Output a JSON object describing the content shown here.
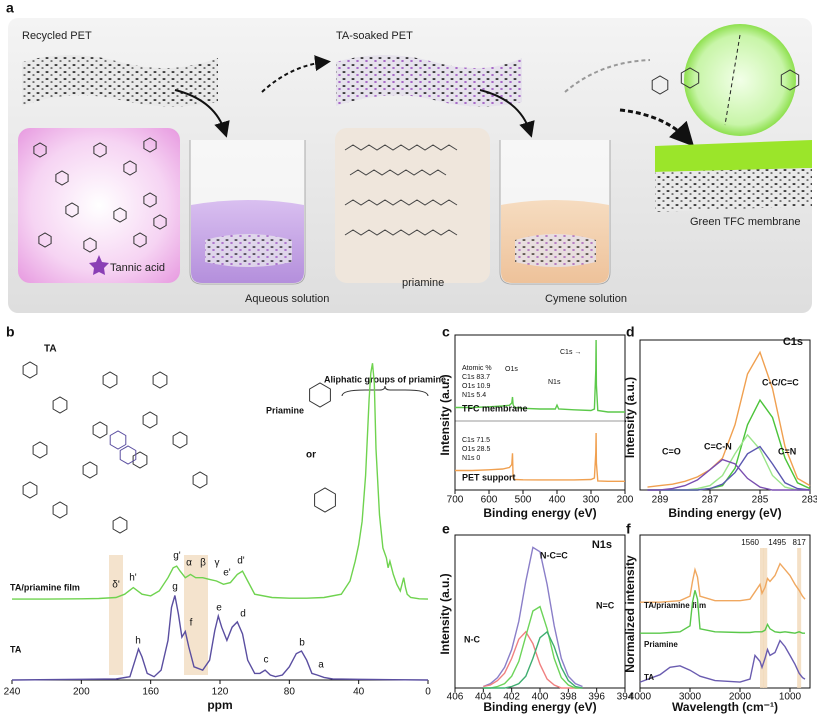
{
  "figure": {
    "panel_a": {
      "label": "a",
      "recycled": "Recycled PET",
      "soaked": "TA-soaked PET",
      "tannic": "Tannic acid",
      "aqueous": "Aqueous solution",
      "priamine": "priamine",
      "cymene": "Cymene solution",
      "membrane": "Green TFC membrane"
    },
    "panel_b_structures": {
      "ta": "TA",
      "priamine": "Priamine",
      "or": "or",
      "aliphatic": "Aliphatic groups of priamine"
    }
  },
  "chart_data": [
    {
      "type": "line",
      "label": "b",
      "xlabel": "ppm",
      "xlim": [
        240,
        0
      ],
      "xticks": [
        240,
        200,
        160,
        120,
        80,
        40,
        0
      ],
      "ylim": [
        0,
        100
      ],
      "frame": false,
      "series": [
        {
          "name": "TA/priamine film",
          "color": "#6fd34f",
          "x": [
            240,
            220,
            200,
            190,
            180,
            175,
            170,
            165,
            160,
            155,
            150,
            147,
            145,
            143,
            140,
            137,
            134,
            130,
            126,
            122,
            118,
            114,
            110,
            107,
            104,
            100,
            90,
            80,
            70,
            60,
            50,
            45,
            42,
            40,
            38,
            36,
            34,
            33,
            32,
            31,
            30,
            28,
            26,
            24,
            23,
            22,
            20,
            18,
            16,
            14,
            13,
            12,
            10,
            5,
            0
          ],
          "values": [
            24.5,
            24.5,
            24.6,
            24.7,
            25,
            26,
            28,
            26,
            25.5,
            27,
            31,
            34,
            34.5,
            33,
            31,
            32,
            31,
            31,
            30.5,
            30,
            29,
            29.5,
            32,
            33,
            30,
            26,
            25,
            24.8,
            24.8,
            25,
            26,
            30,
            36,
            41,
            48,
            62,
            85,
            93,
            96,
            90,
            70,
            50,
            40,
            37,
            34,
            36,
            32,
            29,
            27,
            31,
            28,
            26,
            25,
            24.6,
            24.5
          ],
          "peak_labels": [
            "δ'",
            "h'",
            "g'",
            "α",
            "β",
            "γ",
            "e'",
            "d'"
          ]
        },
        {
          "name": "TA",
          "color": "#5a4ea0",
          "x": [
            240,
            200,
            180,
            172,
            169,
            167,
            165,
            162,
            158,
            154,
            150,
            148,
            146,
            144,
            142,
            140,
            138,
            135,
            130,
            126,
            123,
            121,
            119,
            116,
            113,
            110,
            107,
            104,
            100,
            97,
            94,
            91,
            88,
            84,
            80,
            76,
            73,
            70,
            67,
            64,
            60,
            55,
            40,
            20,
            0
          ],
          "values": [
            0,
            0.2,
            0.3,
            1,
            6,
            9.4,
            7,
            2,
            1,
            3,
            12,
            22,
            25.6,
            20,
            13,
            14.7,
            10,
            4,
            3,
            6,
            15,
            19.4,
            16,
            12,
            16,
            17.6,
            14,
            6,
            2,
            2,
            3,
            1.5,
            1,
            1.5,
            4,
            8,
            8.8,
            6,
            2,
            1.5,
            0.8,
            0.3,
            0.2,
            0.1,
            0
          ],
          "peak_labels": [
            "h",
            "g",
            "f",
            "e",
            "d",
            "c",
            "b",
            "a"
          ]
        }
      ]
    },
    {
      "type": "line",
      "label": "c",
      "xlabel": "Binding energy (eV)",
      "ylabel": "Intensity (a.u.)",
      "xlim": [
        700,
        200
      ],
      "xticks": [
        700,
        600,
        500,
        400,
        300,
        200
      ],
      "ylim": [
        0,
        100
      ],
      "frame": true,
      "annotations": [
        "Atomic %",
        "C1s 83.7",
        "O1s 10.9",
        "N1s 5.4",
        "C1s 71.5",
        "O1s 28.5",
        "N1s 0",
        "O1s",
        "N1s",
        "C1s →"
      ],
      "series": [
        {
          "name": "TFC membrane",
          "color": "#5cc94a",
          "x": [
            700,
            650,
            600,
            560,
            540,
            533,
            531,
            529,
            525,
            500,
            450,
            405,
            400,
            395,
            350,
            300,
            290,
            286,
            285,
            284,
            280,
            250,
            200
          ],
          "values": [
            55,
            55,
            55.5,
            56,
            56.5,
            58,
            62,
            57,
            55,
            54.5,
            54,
            54,
            56.6,
            54,
            53.5,
            53,
            54,
            80,
            100,
            70,
            53,
            52,
            52
          ]
        },
        {
          "name": "PET support",
          "color": "#f0a050",
          "x": [
            700,
            650,
            600,
            560,
            540,
            533,
            531,
            529,
            525,
            500,
            450,
            400,
            350,
            300,
            290,
            286,
            285,
            284,
            280,
            250,
            200
          ],
          "values": [
            13,
            13,
            13.5,
            14,
            15,
            17,
            24.5,
            8,
            7,
            6.8,
            6.7,
            6.7,
            6.7,
            7,
            8,
            25,
            38,
            18,
            6,
            5.8,
            5.8
          ]
        }
      ]
    },
    {
      "type": "line",
      "label": "d",
      "title": "C1s",
      "xlabel": "Binding energy (eV)",
      "ylabel": "Intensity (a.u.)",
      "xlim": [
        289.8,
        283
      ],
      "xticks": [
        289,
        287,
        285,
        283
      ],
      "ylim": [
        0,
        100
      ],
      "frame": true,
      "x": [
        289.5,
        289,
        288.5,
        288,
        287.5,
        287,
        286.5,
        286,
        285.5,
        285,
        284.5,
        284,
        283.5,
        283
      ],
      "series": [
        {
          "color": "#f0a050",
          "values": [
            2,
            3,
            4,
            6,
            9,
            14,
            22,
            45,
            80,
            95,
            70,
            30,
            8,
            3
          ]
        },
        {
          "name": "C-C/C=C",
          "color": "#4cc43a",
          "values": [
            0,
            0,
            0,
            0,
            0,
            1,
            3,
            15,
            45,
            62,
            50,
            22,
            5,
            1
          ]
        },
        {
          "name": "C=C-N",
          "color": "#9be58a",
          "values": [
            0,
            0,
            0,
            0,
            1,
            3,
            10,
            25,
            38,
            28,
            10,
            2,
            0,
            0
          ]
        },
        {
          "name": "C=N",
          "color": "#5b58b0",
          "values": [
            0,
            0,
            0,
            0,
            0,
            1,
            4,
            12,
            25,
            30,
            18,
            5,
            1,
            0
          ]
        },
        {
          "name": "C=O",
          "color": "#7a4fb0",
          "values": [
            0,
            0,
            1,
            3,
            7,
            14,
            21,
            18,
            8,
            2,
            0,
            0,
            0,
            0
          ]
        }
      ]
    },
    {
      "type": "line",
      "label": "e",
      "title": "N1s",
      "xlabel": "Binding energy (eV)",
      "ylabel": "Intensity (a.u.)",
      "xlim": [
        406,
        394
      ],
      "xticks": [
        406,
        404,
        402,
        400,
        398,
        396,
        394
      ],
      "ylim": [
        0,
        100
      ],
      "frame": true,
      "x": [
        404,
        403.5,
        403,
        402.5,
        402,
        401.5,
        401,
        400.5,
        400,
        399.5,
        399,
        398.5,
        398,
        397.5,
        397
      ],
      "series": [
        {
          "color": "#8a7ec8",
          "values": [
            1,
            3,
            7,
            14,
            26,
            45,
            72,
            95,
            92,
            70,
            42,
            20,
            8,
            3,
            1
          ]
        },
        {
          "name": "N-C",
          "color": "#f08080",
          "values": [
            1,
            2,
            5,
            10,
            20,
            33,
            38,
            30,
            16,
            6,
            2,
            0,
            0,
            0,
            0
          ]
        },
        {
          "name": "N-C=C",
          "color": "#6dd45a",
          "values": [
            0,
            0,
            1,
            3,
            8,
            18,
            35,
            52,
            55,
            40,
            20,
            7,
            2,
            0,
            0
          ]
        },
        {
          "name": "N=C",
          "color": "#3fae70",
          "values": [
            0,
            0,
            0,
            0,
            1,
            3,
            8,
            20,
            34,
            38,
            28,
            14,
            5,
            1,
            0
          ]
        }
      ]
    },
    {
      "type": "line",
      "label": "f",
      "xlabel": "Wavelength (cm⁻¹)",
      "ylabel": "Normalized intensity",
      "xlim": [
        4000,
        600
      ],
      "xticks": [
        4000,
        3000,
        2000,
        1000
      ],
      "ylim": [
        0,
        100
      ],
      "frame": true,
      "marker_lines": [
        1560,
        1495,
        817
      ],
      "x": [
        4000,
        3600,
        3400,
        3200,
        3000,
        2950,
        2900,
        2850,
        2800,
        2500,
        2000,
        1800,
        1700,
        1600,
        1560,
        1500,
        1450,
        1400,
        1300,
        1200,
        1100,
        1000,
        900,
        817,
        750,
        700
      ],
      "series": [
        {
          "name": "TA/priamine film",
          "color": "#f0a860",
          "values": [
            58,
            58,
            58.5,
            59,
            62,
            72,
            80,
            75,
            62,
            59,
            59,
            60,
            65,
            70,
            64,
            68,
            74,
            72,
            76,
            84,
            80,
            76,
            70,
            66,
            62,
            60
          ]
        },
        {
          "name": "Priamine",
          "color": "#5ac84a",
          "values": [
            37,
            37,
            37.5,
            38,
            42,
            58,
            66,
            60,
            40,
            38,
            37.5,
            37.5,
            38,
            38,
            38,
            39,
            43,
            40,
            38,
            37.5,
            38,
            37.5,
            37,
            38,
            37,
            37
          ]
        },
        {
          "name": "TA",
          "color": "#6a5cb0",
          "values": [
            4,
            9,
            14,
            15,
            12,
            11,
            10,
            9,
            8,
            5,
            4,
            6,
            22,
            18,
            14,
            20,
            26,
            22,
            24,
            32,
            28,
            22,
            16,
            10,
            7,
            6
          ]
        }
      ]
    }
  ]
}
